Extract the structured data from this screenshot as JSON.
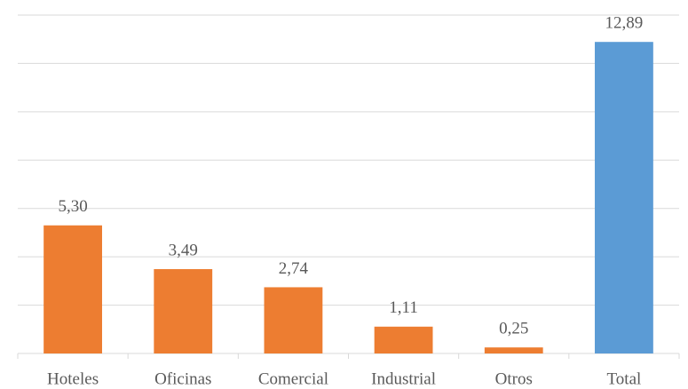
{
  "chart_data": {
    "type": "bar",
    "categories": [
      "Hoteles",
      "Oficinas",
      "Comercial",
      "Industrial",
      "Otros",
      "Total"
    ],
    "values": [
      5.3,
      3.49,
      2.74,
      1.11,
      0.25,
      12.89
    ],
    "value_labels": [
      "5,30",
      "3,49",
      "2,74",
      "1,11",
      "0,25",
      "12,89"
    ],
    "colors": [
      "#ed7d31",
      "#ed7d31",
      "#ed7d31",
      "#ed7d31",
      "#ed7d31",
      "#5b9bd5"
    ],
    "ylim": [
      0,
      14
    ],
    "yticks": [
      0,
      2,
      4,
      6,
      8,
      10,
      12,
      14
    ],
    "grid": true
  }
}
